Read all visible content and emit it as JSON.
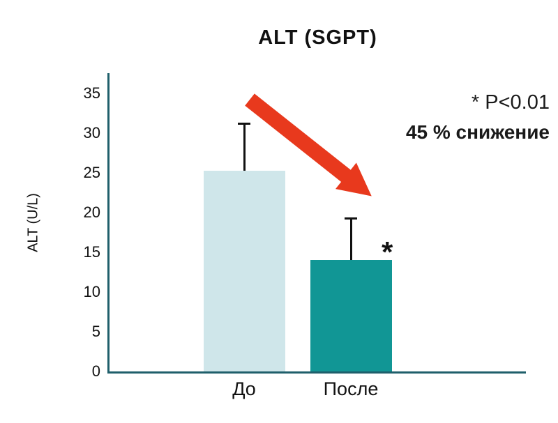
{
  "title": "ALT (SGPT)",
  "annotations": {
    "significance": "* P<0.01",
    "reduction": "45 % снижение",
    "bar_marker": "*"
  },
  "colors": {
    "axis": "#1f5f6b",
    "arrow": "#e8391d",
    "text": "#111111",
    "bar_before": "#cfe6ea",
    "bar_after": "#119695"
  },
  "chart_data": {
    "type": "bar",
    "title": "ALT (SGPT)",
    "xlabel": "",
    "ylabel": "ALT (U/L)",
    "categories": [
      "До",
      "После"
    ],
    "values": [
      25.3,
      14.0
    ],
    "error_plus": [
      6.0,
      5.4
    ],
    "bar_colors": [
      "#cfe6ea",
      "#119695"
    ],
    "ylim": [
      0,
      35
    ],
    "yticks": [
      0,
      5,
      10,
      15,
      20,
      25,
      30,
      35
    ],
    "grid": false,
    "legend": null,
    "annotations": [
      "* P<0.01",
      "45 % снижение",
      "* near bar После"
    ]
  }
}
